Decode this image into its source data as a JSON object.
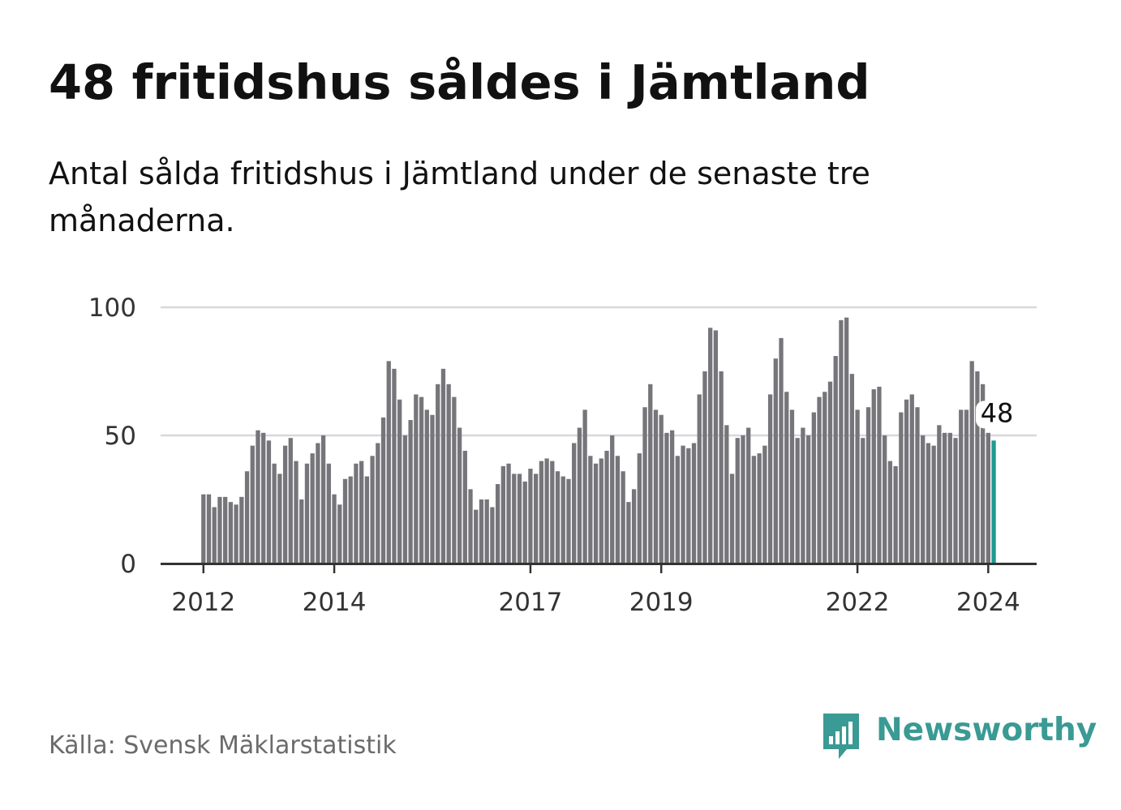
{
  "title": "48 fritidshus såldes i Jämtland",
  "subtitle": "Antal sålda fritidshus i Jämtland under de senaste tre månaderna.",
  "source": "Källa: Svensk Mäklarstatistik",
  "brand": {
    "name": "Newsworthy",
    "icon": "chart-speech-bubble-icon"
  },
  "colors": {
    "bar": "#76757a",
    "highlight": "#1f9a92",
    "grid": "#d8d8d8",
    "axis": "#333333",
    "brand": "#3a9a94"
  },
  "chart_data": {
    "type": "bar",
    "title": "48 fritidshus såldes i Jämtland",
    "xlabel": "",
    "ylabel": "",
    "ylim": [
      0,
      100
    ],
    "yticks": [
      0,
      50,
      100
    ],
    "grid": true,
    "start": {
      "year": 2012,
      "month": 1
    },
    "xtick_labels": [
      {
        "label": "2012",
        "index": 0
      },
      {
        "label": "2014",
        "index": 24
      },
      {
        "label": "2017",
        "index": 60
      },
      {
        "label": "2019",
        "index": 84
      },
      {
        "label": "2022",
        "index": 120
      },
      {
        "label": "2024",
        "index": 144
      }
    ],
    "series": [
      {
        "name": "Antal sålda fritidshus",
        "values": [
          27,
          27,
          22,
          26,
          26,
          24,
          23,
          26,
          36,
          46,
          52,
          51,
          48,
          39,
          35,
          46,
          49,
          40,
          25,
          39,
          43,
          47,
          50,
          39,
          27,
          23,
          33,
          34,
          39,
          40,
          34,
          42,
          47,
          57,
          79,
          76,
          64,
          50,
          56,
          66,
          65,
          60,
          58,
          70,
          76,
          70,
          65,
          53,
          44,
          29,
          21,
          25,
          25,
          22,
          31,
          38,
          39,
          35,
          35,
          32,
          37,
          35,
          40,
          41,
          40,
          36,
          34,
          33,
          47,
          53,
          60,
          42,
          39,
          41,
          44,
          50,
          42,
          36,
          24,
          29,
          43,
          61,
          70,
          60,
          58,
          51,
          52,
          42,
          46,
          45,
          47,
          66,
          75,
          92,
          91,
          75,
          54,
          35,
          49,
          50,
          53,
          42,
          43,
          46,
          66,
          80,
          88,
          67,
          60,
          49,
          53,
          50,
          59,
          65,
          67,
          71,
          81,
          95,
          96,
          74,
          60,
          49,
          61,
          68,
          69,
          50,
          40,
          38,
          59,
          64,
          66,
          61,
          50,
          47,
          46,
          54,
          51,
          51,
          49,
          60,
          60,
          79,
          75,
          70,
          51,
          48
        ]
      }
    ],
    "highlight": {
      "index": 145,
      "value": 48,
      "label": "48"
    }
  }
}
